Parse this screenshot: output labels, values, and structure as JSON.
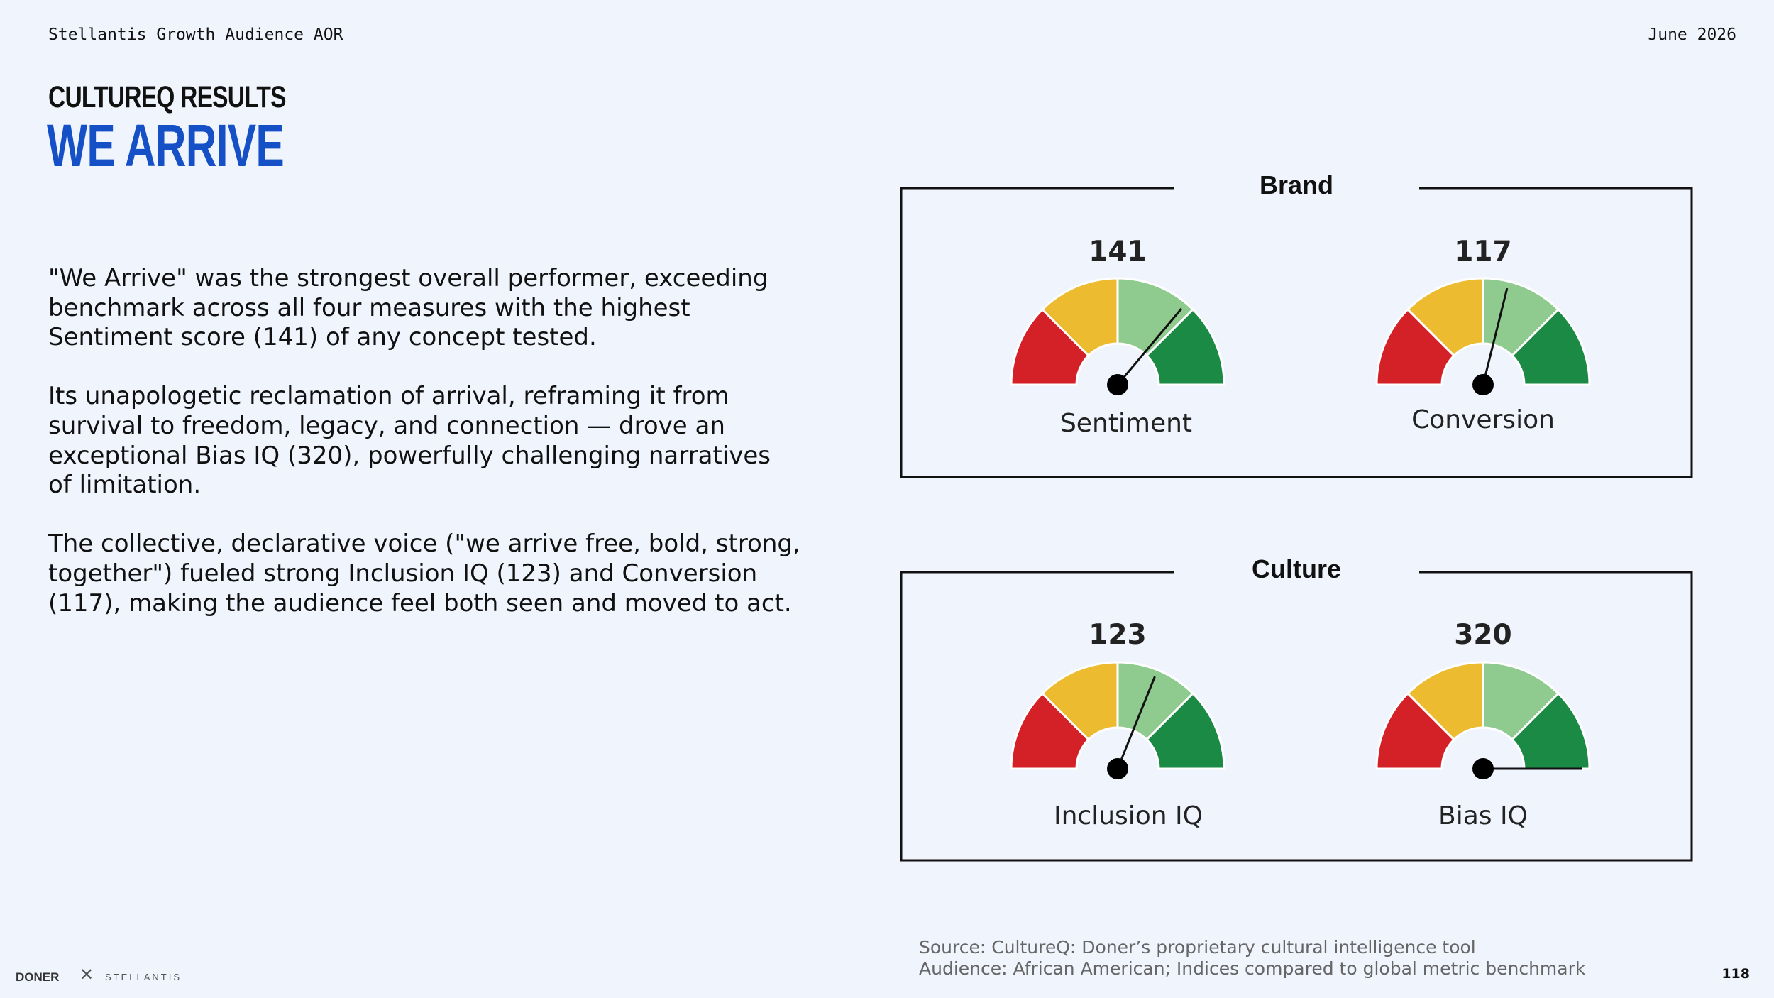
{
  "header": {
    "client": "Stellantis Growth Audience AOR",
    "date": "June 2026"
  },
  "eyebrow": "CULTUREQ RESULTS",
  "title": "WE ARRIVE",
  "body": {
    "p1": "\"We Arrive\" was the strongest overall performer, exceeding benchmark across all four measures with the highest Sentiment score (141) of any concept tested.",
    "p2": "Its unapologetic reclamation of arrival, reframing it from survival to freedom, legacy, and connection — drove an exceptional Bias IQ (320), powerfully challenging narratives of limitation.",
    "p3": "The collective, declarative voice (\"we arrive free, bold, strong, together\") fueled strong Inclusion IQ (123) and Conversion (117), making the audience feel both seen and moved to act."
  },
  "groups": [
    {
      "label": "Brand",
      "gauges": [
        {
          "label": "Sentiment",
          "value": 141,
          "needle_angle_deg": 50
        },
        {
          "label": "Conversion",
          "value": 117,
          "needle_angle_deg": 76
        }
      ]
    },
    {
      "label": "Culture",
      "gauges": [
        {
          "label": "Inclusion IQ",
          "value": 123,
          "needle_angle_deg": 68
        },
        {
          "label": "Bias IQ",
          "value": 320,
          "needle_angle_deg": 0
        }
      ]
    }
  ],
  "colors": {
    "red": "#d42127",
    "yellow": "#ecbb2f",
    "light_green": "#8fca8e",
    "dark_green": "#1b8a45",
    "title_blue": "#1550c6"
  },
  "footer": {
    "source_line1": "Source: CultureQ: Doner’s proprietary cultural intelligence tool",
    "source_line2": "Audience: African American; Indices compared to global metric benchmark",
    "page_number": "118",
    "logo_doner": "DONER",
    "logo_x": "✕",
    "logo_stellantis": "STELLANTIS"
  }
}
